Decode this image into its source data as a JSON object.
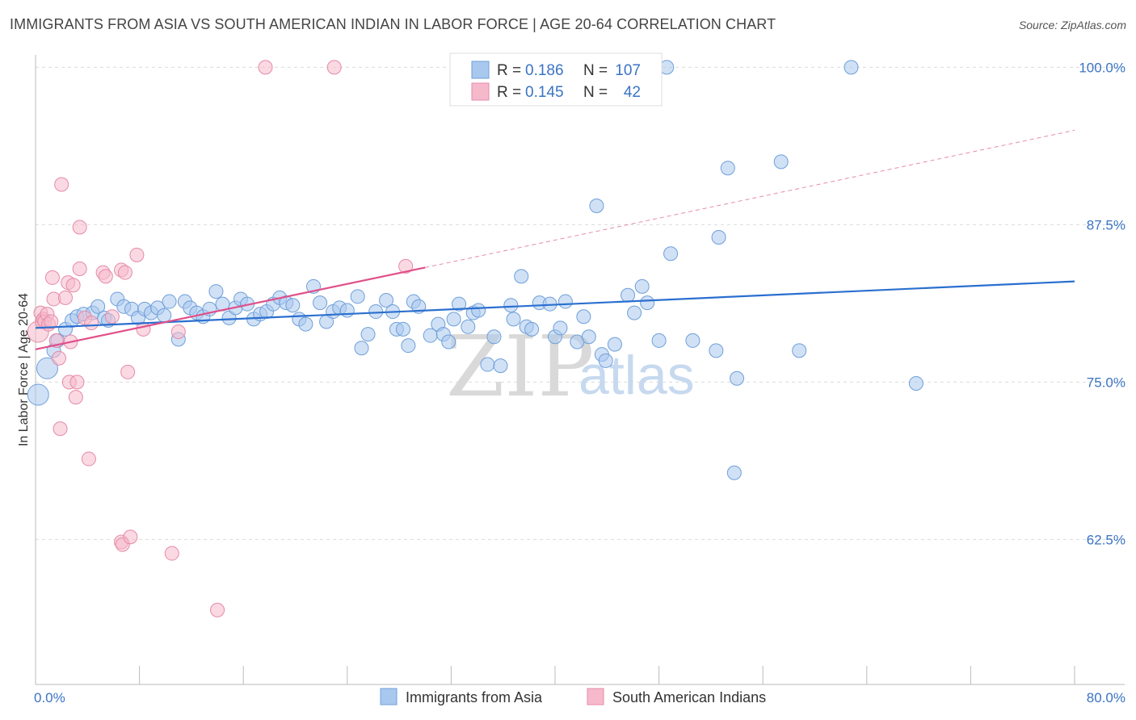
{
  "title": "IMMIGRANTS FROM ASIA VS SOUTH AMERICAN INDIAN IN LABOR FORCE | AGE 20-64 CORRELATION CHART",
  "source": "Source: ZipAtlas.com",
  "watermark": {
    "zip": "ZIP",
    "atlas": "atlas"
  },
  "chart_data": {
    "type": "scatter",
    "title": "IMMIGRANTS FROM ASIA VS SOUTH AMERICAN INDIAN IN LABOR FORCE | AGE 20-64 CORRELATION CHART",
    "xlabel": "",
    "ylabel": "In Labor Force | Age 20-64",
    "xlim": [
      0,
      80
    ],
    "ylim": [
      51.5,
      101.5
    ],
    "x_tick_labels": [
      {
        "value": 0,
        "label": "0.0%"
      },
      {
        "value": 80,
        "label": "80.0%"
      }
    ],
    "y_tick_labels": [
      {
        "value": 100,
        "label": "100.0%"
      },
      {
        "value": 87.5,
        "label": "87.5%"
      },
      {
        "value": 75,
        "label": "75.0%"
      },
      {
        "value": 62.5,
        "label": "62.5%"
      }
    ],
    "stats": [
      {
        "r_label": "R =",
        "r": "0.186",
        "n_label": "N =",
        "n": "107",
        "color": "#a9c8ee",
        "stroke": "#6f9fd9"
      },
      {
        "r_label": "R =",
        "r": "0.145",
        "n_label": "N =",
        "n": "42",
        "color": "#f6b9cc",
        "stroke": "#e58aa8"
      }
    ],
    "series": [
      {
        "name": "Immigrants from Asia",
        "color": "#a9c8ee",
        "stroke": "#6f9fd9",
        "trend": {
          "x": [
            0,
            80
          ],
          "y": [
            79.3,
            83.0
          ],
          "color": "#2a6fcf"
        },
        "points": [
          [
            0.2,
            74.0,
            2
          ],
          [
            0.9,
            76.1,
            2
          ],
          [
            1.4,
            77.5,
            1
          ],
          [
            1.7,
            78.3,
            1
          ],
          [
            2.3,
            79.2,
            1
          ],
          [
            2.8,
            79.9,
            1
          ],
          [
            3.2,
            80.2,
            1
          ],
          [
            3.7,
            80.4,
            1
          ],
          [
            4.4,
            80.5,
            1
          ],
          [
            4.8,
            81.0,
            1
          ],
          [
            5.3,
            80.1,
            1
          ],
          [
            5.6,
            79.9,
            1
          ],
          [
            6.3,
            81.6,
            1
          ],
          [
            6.8,
            81.0,
            1
          ],
          [
            7.4,
            80.8,
            1
          ],
          [
            7.9,
            80.1,
            1
          ],
          [
            8.4,
            80.8,
            1
          ],
          [
            8.9,
            80.5,
            1
          ],
          [
            9.4,
            80.9,
            1
          ],
          [
            9.9,
            80.3,
            1
          ],
          [
            10.3,
            81.4,
            1
          ],
          [
            11.0,
            78.4,
            1
          ],
          [
            11.5,
            81.4,
            1
          ],
          [
            11.9,
            80.9,
            1
          ],
          [
            12.4,
            80.5,
            1
          ],
          [
            12.9,
            80.2,
            1
          ],
          [
            13.4,
            80.8,
            1
          ],
          [
            13.9,
            82.2,
            1
          ],
          [
            14.4,
            81.2,
            1
          ],
          [
            14.9,
            80.1,
            1
          ],
          [
            15.4,
            80.9,
            1
          ],
          [
            15.8,
            81.6,
            1
          ],
          [
            16.3,
            81.2,
            1
          ],
          [
            16.8,
            80.0,
            1
          ],
          [
            17.3,
            80.4,
            1
          ],
          [
            17.8,
            80.6,
            1
          ],
          [
            18.3,
            81.2,
            1
          ],
          [
            18.8,
            81.7,
            1
          ],
          [
            19.3,
            81.3,
            1
          ],
          [
            19.8,
            81.1,
            1
          ],
          [
            20.3,
            80.0,
            1
          ],
          [
            20.8,
            79.6,
            1
          ],
          [
            21.4,
            82.6,
            1
          ],
          [
            21.9,
            81.3,
            1
          ],
          [
            22.4,
            79.8,
            1
          ],
          [
            22.9,
            80.6,
            1
          ],
          [
            23.4,
            80.9,
            1
          ],
          [
            24.0,
            80.7,
            1
          ],
          [
            24.8,
            81.8,
            1
          ],
          [
            25.1,
            77.7,
            1
          ],
          [
            25.6,
            78.8,
            1
          ],
          [
            26.2,
            80.6,
            1
          ],
          [
            27.0,
            81.5,
            1
          ],
          [
            27.5,
            80.6,
            1
          ],
          [
            27.8,
            79.2,
            1
          ],
          [
            28.3,
            79.2,
            1
          ],
          [
            28.7,
            77.9,
            1
          ],
          [
            29.1,
            81.4,
            1
          ],
          [
            29.5,
            81.0,
            1
          ],
          [
            30.4,
            78.7,
            1
          ],
          [
            31.0,
            79.6,
            1
          ],
          [
            31.4,
            78.8,
            1
          ],
          [
            31.8,
            78.2,
            1
          ],
          [
            32.2,
            80.0,
            1
          ],
          [
            32.6,
            81.2,
            1
          ],
          [
            33.3,
            79.4,
            1
          ],
          [
            33.7,
            80.5,
            1
          ],
          [
            34.1,
            80.7,
            1
          ],
          [
            34.8,
            76.4,
            1
          ],
          [
            35.3,
            78.6,
            1
          ],
          [
            35.8,
            76.3,
            1
          ],
          [
            36.6,
            81.1,
            1
          ],
          [
            36.8,
            80.0,
            1
          ],
          [
            37.4,
            83.4,
            1
          ],
          [
            37.8,
            79.4,
            1
          ],
          [
            38.2,
            79.2,
            1
          ],
          [
            38.8,
            81.3,
            1
          ],
          [
            39.6,
            81.2,
            1
          ],
          [
            40.0,
            78.6,
            1
          ],
          [
            40.4,
            79.3,
            1
          ],
          [
            40.8,
            81.4,
            1
          ],
          [
            41.7,
            78.2,
            1
          ],
          [
            42.2,
            80.2,
            1
          ],
          [
            42.6,
            78.6,
            1
          ],
          [
            43.2,
            89.0,
            1
          ],
          [
            43.6,
            77.2,
            1
          ],
          [
            43.9,
            76.7,
            1
          ],
          [
            44.6,
            78.0,
            1
          ],
          [
            45.6,
            81.9,
            1
          ],
          [
            46.1,
            80.5,
            1
          ],
          [
            46.7,
            82.6,
            1
          ],
          [
            47.1,
            81.3,
            1
          ],
          [
            48.0,
            78.3,
            1
          ],
          [
            48.6,
            100.0,
            1
          ],
          [
            48.9,
            85.2,
            1
          ],
          [
            50.6,
            78.3,
            1
          ],
          [
            52.4,
            77.5,
            1
          ],
          [
            52.6,
            86.5,
            1
          ],
          [
            53.3,
            92.0,
            1
          ],
          [
            53.8,
            67.8,
            1
          ],
          [
            54.0,
            75.3,
            1
          ],
          [
            57.4,
            92.5,
            1
          ],
          [
            58.8,
            77.5,
            1
          ],
          [
            62.8,
            100.0,
            1
          ],
          [
            67.8,
            74.9,
            1
          ]
        ]
      },
      {
        "name": "South American Indians",
        "color": "#f6b9cc",
        "stroke": "#e58aa8",
        "trend": {
          "x": [
            0,
            30
          ],
          "y": [
            77.6,
            84.1
          ],
          "color": "#e0508a",
          "dashed_to": {
            "x": 80,
            "y": 95.0
          }
        },
        "points": [
          [
            0.2,
            79.0,
            2
          ],
          [
            0.4,
            80.5,
            1
          ],
          [
            0.5,
            79.8,
            1
          ],
          [
            0.6,
            80.0,
            1
          ],
          [
            0.7,
            79.8,
            1
          ],
          [
            0.9,
            80.4,
            1
          ],
          [
            1.0,
            79.6,
            1
          ],
          [
            1.2,
            79.8,
            1
          ],
          [
            1.3,
            83.3,
            1
          ],
          [
            1.4,
            81.6,
            1
          ],
          [
            1.6,
            78.3,
            1
          ],
          [
            1.8,
            76.9,
            1
          ],
          [
            1.9,
            71.3,
            1
          ],
          [
            2.0,
            90.7,
            1
          ],
          [
            2.3,
            81.7,
            1
          ],
          [
            2.5,
            82.9,
            1
          ],
          [
            2.6,
            75.0,
            1
          ],
          [
            2.7,
            78.2,
            1
          ],
          [
            2.9,
            82.7,
            1
          ],
          [
            3.1,
            73.8,
            1
          ],
          [
            3.2,
            75.0,
            1
          ],
          [
            3.4,
            87.3,
            1
          ],
          [
            3.4,
            84.0,
            1
          ],
          [
            3.8,
            80.1,
            1
          ],
          [
            4.1,
            68.9,
            1
          ],
          [
            4.3,
            79.7,
            1
          ],
          [
            5.2,
            83.7,
            1
          ],
          [
            5.4,
            83.4,
            1
          ],
          [
            5.9,
            80.2,
            1
          ],
          [
            6.6,
            83.9,
            1
          ],
          [
            6.9,
            83.7,
            1
          ],
          [
            6.6,
            62.3,
            1
          ],
          [
            6.7,
            62.1,
            1
          ],
          [
            7.1,
            75.8,
            1
          ],
          [
            7.3,
            62.7,
            1
          ],
          [
            7.8,
            85.1,
            1
          ],
          [
            8.3,
            79.2,
            1
          ],
          [
            10.5,
            61.4,
            1
          ],
          [
            11.0,
            79.0,
            1
          ],
          [
            14.0,
            56.9,
            1
          ],
          [
            17.7,
            100.0,
            1
          ],
          [
            23.0,
            100.0,
            1
          ],
          [
            28.5,
            84.2,
            1
          ]
        ]
      }
    ],
    "legend": [
      "Immigrants from Asia",
      "South American Indians"
    ]
  }
}
